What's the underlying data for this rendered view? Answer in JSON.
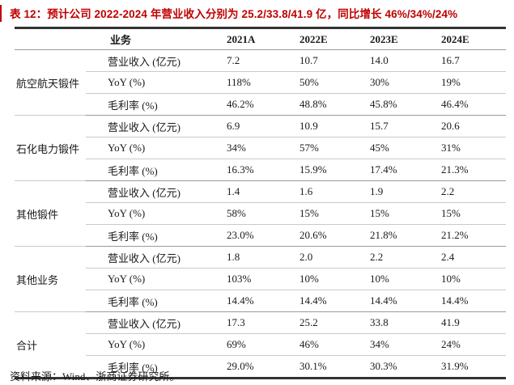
{
  "caption": {
    "text": "表 12：预计公司 2022-2024 年营业收入分别为 25.2/33.8/41.9 亿，同比增长 46%/34%/24%"
  },
  "table": {
    "columns": [
      "业务",
      "2021A",
      "2022E",
      "2023E",
      "2024E"
    ],
    "groups": [
      {
        "name": "航空航天锻件",
        "rows": [
          {
            "metric": "营业收入 (亿元)",
            "values": [
              "7.2",
              "10.7",
              "14.0",
              "16.7"
            ]
          },
          {
            "metric": "YoY (%)",
            "values": [
              "118%",
              "50%",
              "30%",
              "19%"
            ]
          },
          {
            "metric": "毛利率 (%)",
            "values": [
              "46.2%",
              "48.8%",
              "45.8%",
              "46.4%"
            ]
          }
        ]
      },
      {
        "name": "石化电力锻件",
        "rows": [
          {
            "metric": "营业收入 (亿元)",
            "values": [
              "6.9",
              "10.9",
              "15.7",
              "20.6"
            ]
          },
          {
            "metric": "YoY (%)",
            "values": [
              "34%",
              "57%",
              "45%",
              "31%"
            ]
          },
          {
            "metric": "毛利率 (%)",
            "values": [
              "16.3%",
              "15.9%",
              "17.4%",
              "21.3%"
            ]
          }
        ]
      },
      {
        "name": "其他锻件",
        "rows": [
          {
            "metric": "营业收入 (亿元)",
            "values": [
              "1.4",
              "1.6",
              "1.9",
              "2.2"
            ]
          },
          {
            "metric": "YoY (%)",
            "values": [
              "58%",
              "15%",
              "15%",
              "15%"
            ]
          },
          {
            "metric": "毛利率 (%)",
            "values": [
              "23.0%",
              "20.6%",
              "21.8%",
              "21.2%"
            ]
          }
        ]
      },
      {
        "name": "其他业务",
        "rows": [
          {
            "metric": "营业收入 (亿元)",
            "values": [
              "1.8",
              "2.0",
              "2.2",
              "2.4"
            ]
          },
          {
            "metric": "YoY (%)",
            "values": [
              "103%",
              "10%",
              "10%",
              "10%"
            ]
          },
          {
            "metric": "毛利率 (%)",
            "values": [
              "14.4%",
              "14.4%",
              "14.4%",
              "14.4%"
            ]
          }
        ]
      },
      {
        "name": "合计",
        "rows": [
          {
            "metric": "营业收入 (亿元)",
            "values": [
              "17.3",
              "25.2",
              "33.8",
              "41.9"
            ]
          },
          {
            "metric": "YoY (%)",
            "values": [
              "69%",
              "46%",
              "34%",
              "24%"
            ]
          },
          {
            "metric": "毛利率 (%)",
            "values": [
              "29.0%",
              "30.1%",
              "30.3%",
              "31.9%"
            ]
          }
        ]
      }
    ]
  },
  "footer": {
    "source": "资料来源：Wind、浙商证券研究所。"
  },
  "colors": {
    "accent_red": "#C00000",
    "rule_dark": "#333333",
    "rule_mid": "#9A9A9A",
    "rule_light": "#C9C9C9",
    "text": "#1A1A1A"
  }
}
